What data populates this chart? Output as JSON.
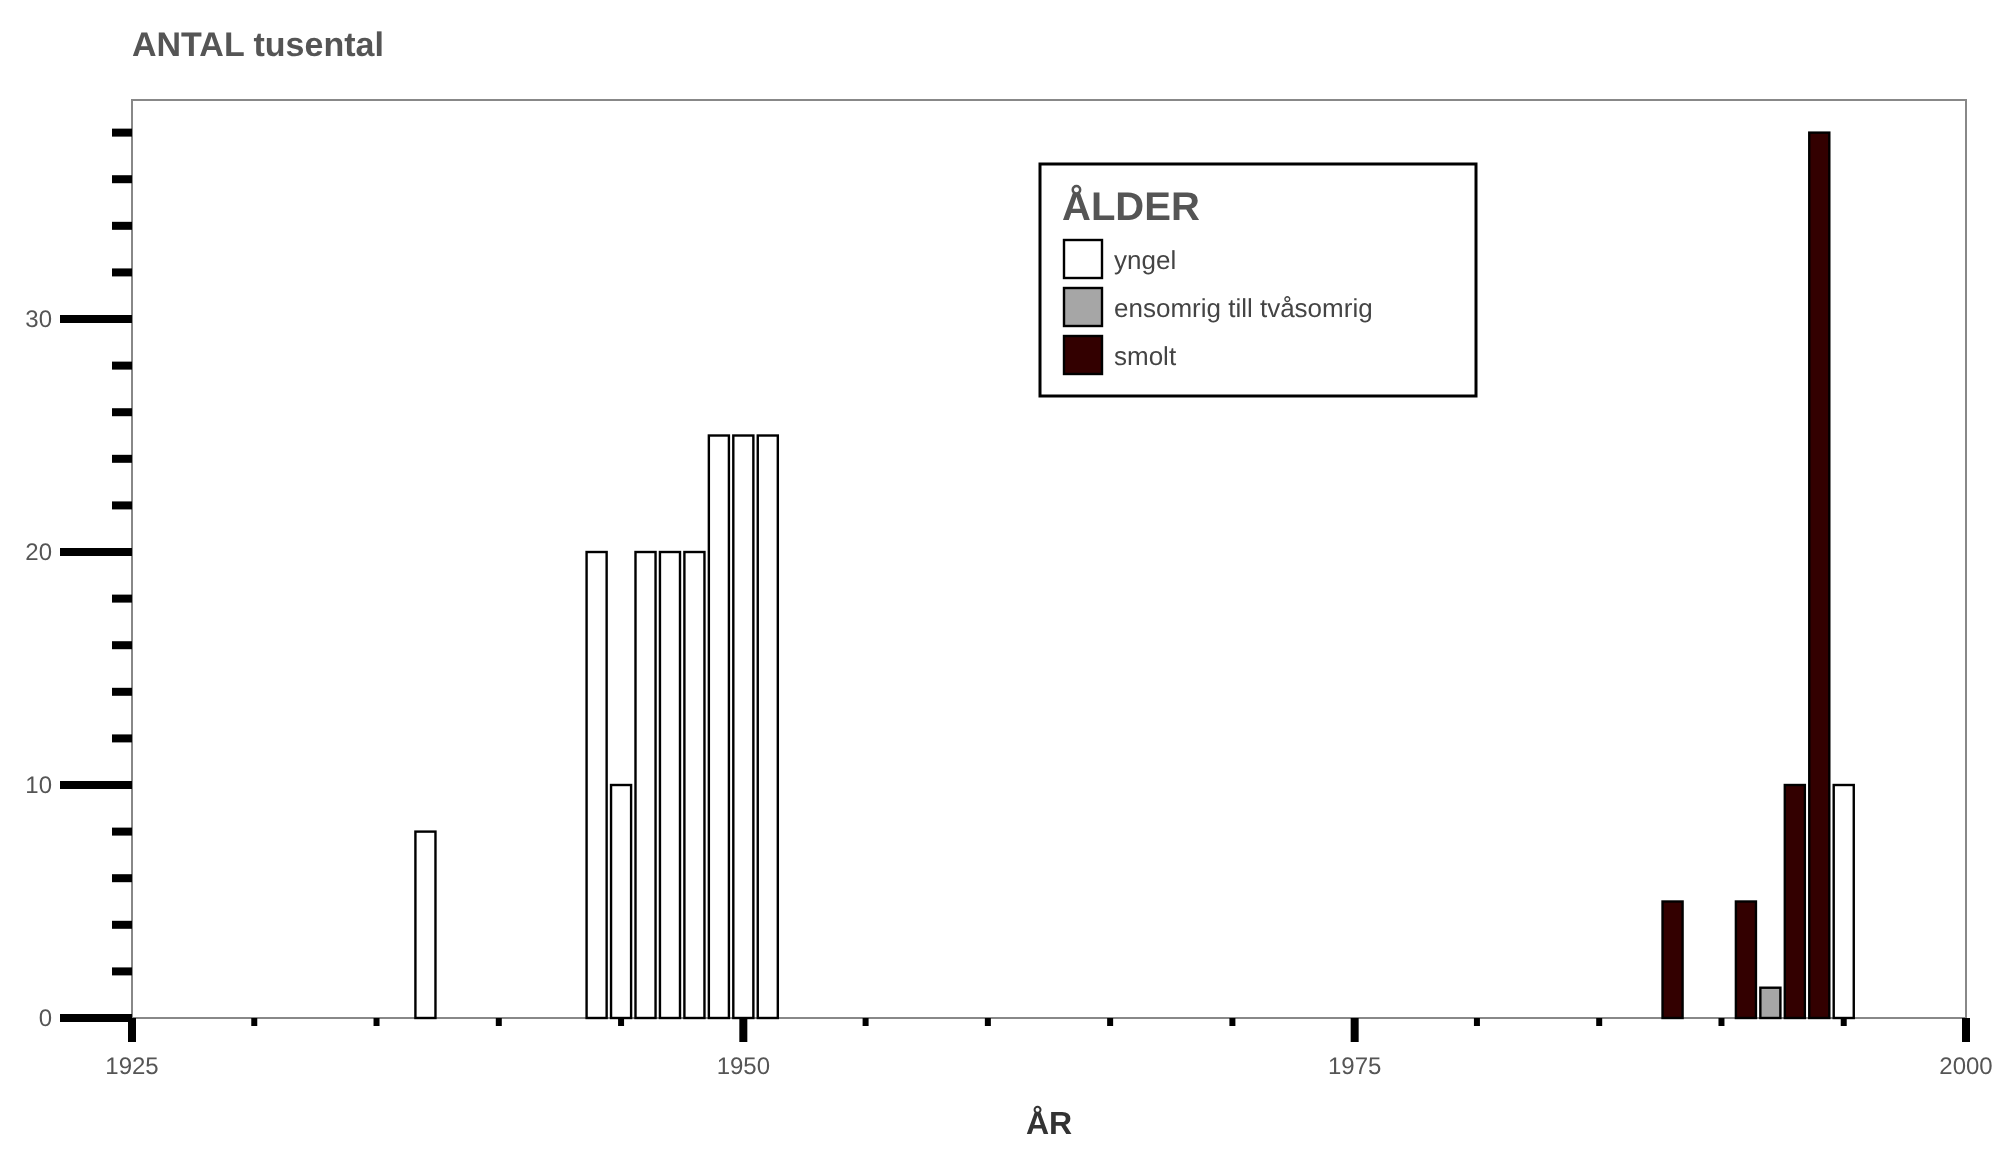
{
  "chart_data": {
    "type": "bar",
    "title": "ANTAL tusental",
    "xlabel": "ÅR",
    "legend_title": "ÅLDER",
    "legend": "top right",
    "grid": false,
    "xlim": [
      1925,
      2000
    ],
    "xticks": [
      1925,
      {
        "value": 1930,
        "label": null
      },
      {
        "value": 1935,
        "label": null
      },
      {
        "value": 1940,
        "label": null
      },
      {
        "value": 1945,
        "label": null
      },
      1950,
      {
        "value": 1955,
        "label": null
      },
      {
        "value": 1960,
        "label": null
      },
      {
        "value": 1965,
        "label": null
      },
      {
        "value": 1970,
        "label": null
      },
      1975,
      {
        "value": 1980,
        "label": null
      },
      {
        "value": 1985,
        "label": null
      },
      {
        "value": 1990,
        "label": null
      },
      {
        "value": 1995,
        "label": null
      },
      2000
    ],
    "ylim": [
      0,
      39.4
    ],
    "yticks": [
      0,
      {
        "value": 2,
        "label": null
      },
      {
        "value": 4,
        "label": null
      },
      {
        "value": 6,
        "label": null
      },
      {
        "value": 8,
        "label": null
      },
      10,
      {
        "value": 12,
        "label": null
      },
      {
        "value": 14,
        "label": null
      },
      {
        "value": 16,
        "label": null
      },
      {
        "value": 18,
        "label": null
      },
      20,
      {
        "value": 22,
        "label": null
      },
      {
        "value": 24,
        "label": null
      },
      {
        "value": 26,
        "label": null
      },
      {
        "value": 28,
        "label": null
      },
      30,
      {
        "value": 32,
        "label": null
      },
      {
        "value": 34,
        "label": null
      },
      {
        "value": 36,
        "label": null
      },
      {
        "value": 38,
        "label": null
      }
    ],
    "series": [
      {
        "name": "yngel",
        "color": "#ffffff",
        "x": [
          1937,
          1944,
          1945,
          1946,
          1947,
          1948,
          1949,
          1950,
          1951,
          1995
        ],
        "values": [
          8,
          20,
          10,
          20,
          20,
          20,
          25,
          25,
          25,
          10
        ]
      },
      {
        "name": "ensomrig till tvåsomrig",
        "color": "#a6a6a6",
        "x": [
          1992
        ],
        "values": [
          1.3
        ]
      },
      {
        "name": "smolt",
        "color": "#330000",
        "x": [
          1988,
          1991,
          1993,
          1994
        ],
        "values": [
          5,
          5,
          10,
          38
        ]
      }
    ]
  }
}
